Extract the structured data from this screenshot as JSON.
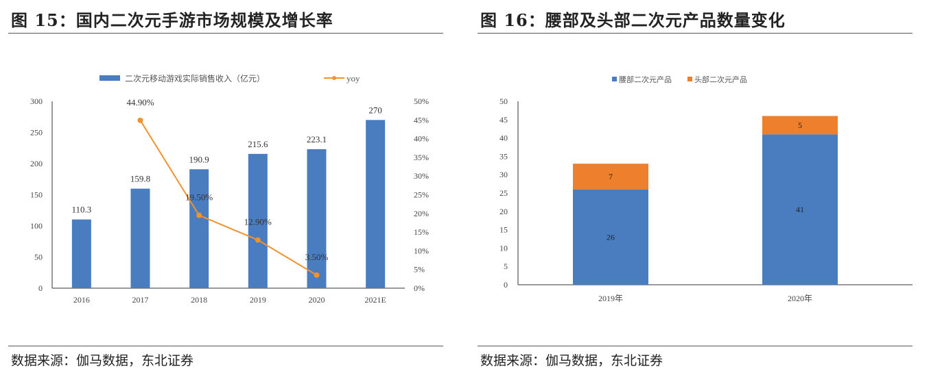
{
  "panels": [
    {
      "title": "图 15：国内二次元手游市场规模及增长率",
      "source": "数据来源：伽马数据，东北证券"
    },
    {
      "title": "图 16：腰部及头部二次元产品数量变化",
      "source": "数据来源：伽马数据，东北证券"
    }
  ],
  "chart_data": [
    {
      "type": "bar+line",
      "categories": [
        "2016",
        "2017",
        "2018",
        "2019",
        "2020",
        "2021E"
      ],
      "series": [
        {
          "name": "二次元移动游戏实际销售收入（亿元）",
          "type": "bar",
          "axis": "left",
          "color": "#4a7cc0",
          "values": [
            110.3,
            159.8,
            190.9,
            215.6,
            223.1,
            270
          ],
          "labels": [
            "110.3",
            "159.8",
            "190.9",
            "215.6",
            "223.1",
            "270"
          ]
        },
        {
          "name": "yoy",
          "type": "line",
          "axis": "right",
          "color": "#f0922e",
          "values": [
            null,
            44.9,
            19.5,
            12.9,
            3.5,
            null
          ],
          "labels": [
            "",
            "44.90%",
            "19.50%",
            "12.90%",
            "3.50%",
            ""
          ]
        }
      ],
      "ylim": [
        0,
        300
      ],
      "yticks": [
        "0",
        "50",
        "100",
        "150",
        "200",
        "250",
        "300"
      ],
      "y2lim": [
        0,
        50
      ],
      "y2ticks": [
        "0%",
        "5%",
        "10%",
        "15%",
        "20%",
        "25%",
        "30%",
        "35%",
        "40%",
        "45%",
        "50%"
      ],
      "legend": "top",
      "grid": false
    },
    {
      "type": "stacked-bar",
      "categories": [
        "2019年",
        "2020年"
      ],
      "series": [
        {
          "name": "腰部二次元产品",
          "color": "#4a7cc0",
          "values": [
            26,
            41
          ]
        },
        {
          "name": "头部二次元产品",
          "color": "#ee7f2d",
          "values": [
            7,
            5
          ]
        }
      ],
      "ylim": [
        0,
        50
      ],
      "yticks": [
        "0",
        "5",
        "10",
        "15",
        "20",
        "25",
        "30",
        "35",
        "40",
        "45",
        "50"
      ],
      "legend": "top",
      "grid": false
    }
  ]
}
